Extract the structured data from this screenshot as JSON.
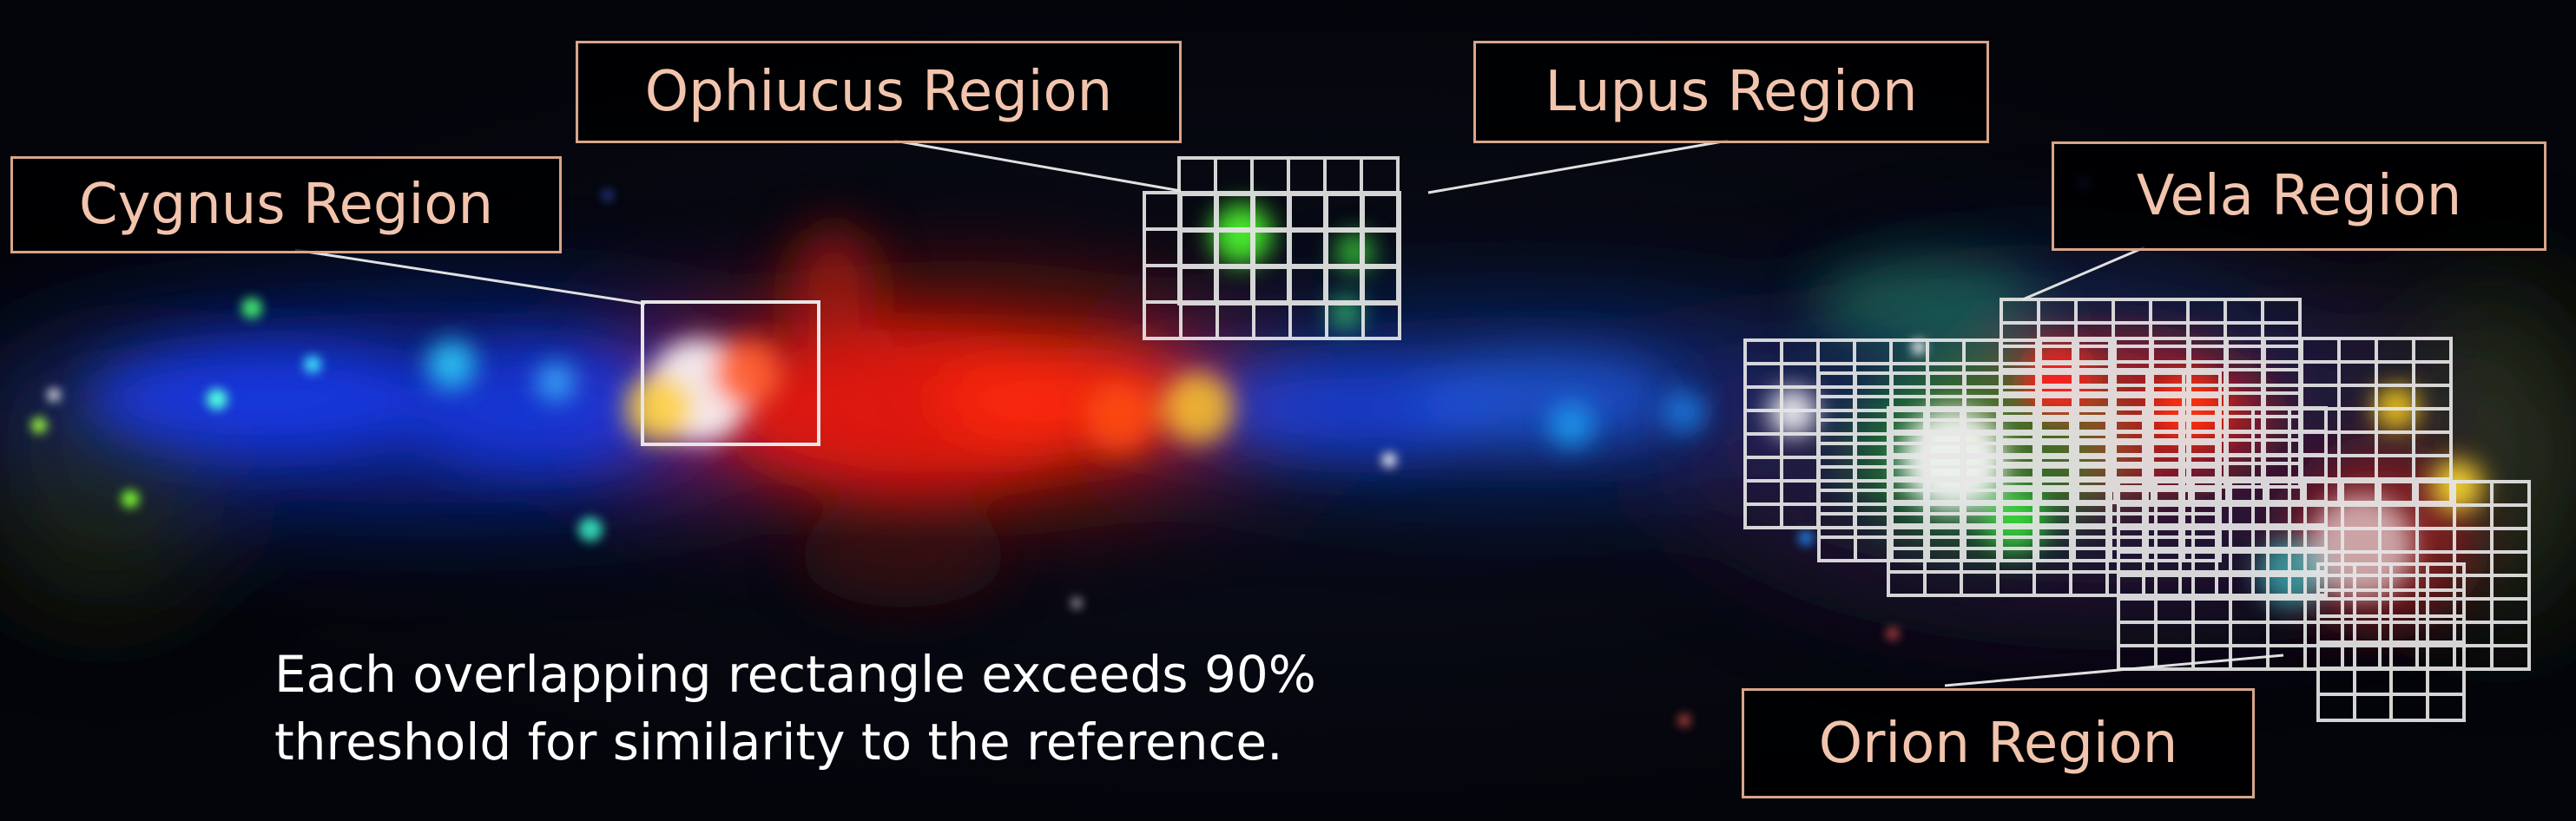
{
  "image": {
    "subject": "galaxy-plane-mosaic",
    "colors": {
      "label_border": "#d9a58a",
      "label_text": "#f2c4ad",
      "grid": "#dcdcdc",
      "caption": "#ffffff"
    }
  },
  "regions": {
    "cygnus": {
      "label": "Cygnus Region"
    },
    "ophiucus": {
      "label": "Ophiucus Region"
    },
    "lupus": {
      "label": "Lupus Region"
    },
    "vela": {
      "label": "Vela Region"
    },
    "orion": {
      "label": "Orion Region"
    }
  },
  "caption": {
    "line1": "Each overlapping rectangle exceeds 90%",
    "line2": "threshold for similarity to the reference."
  }
}
